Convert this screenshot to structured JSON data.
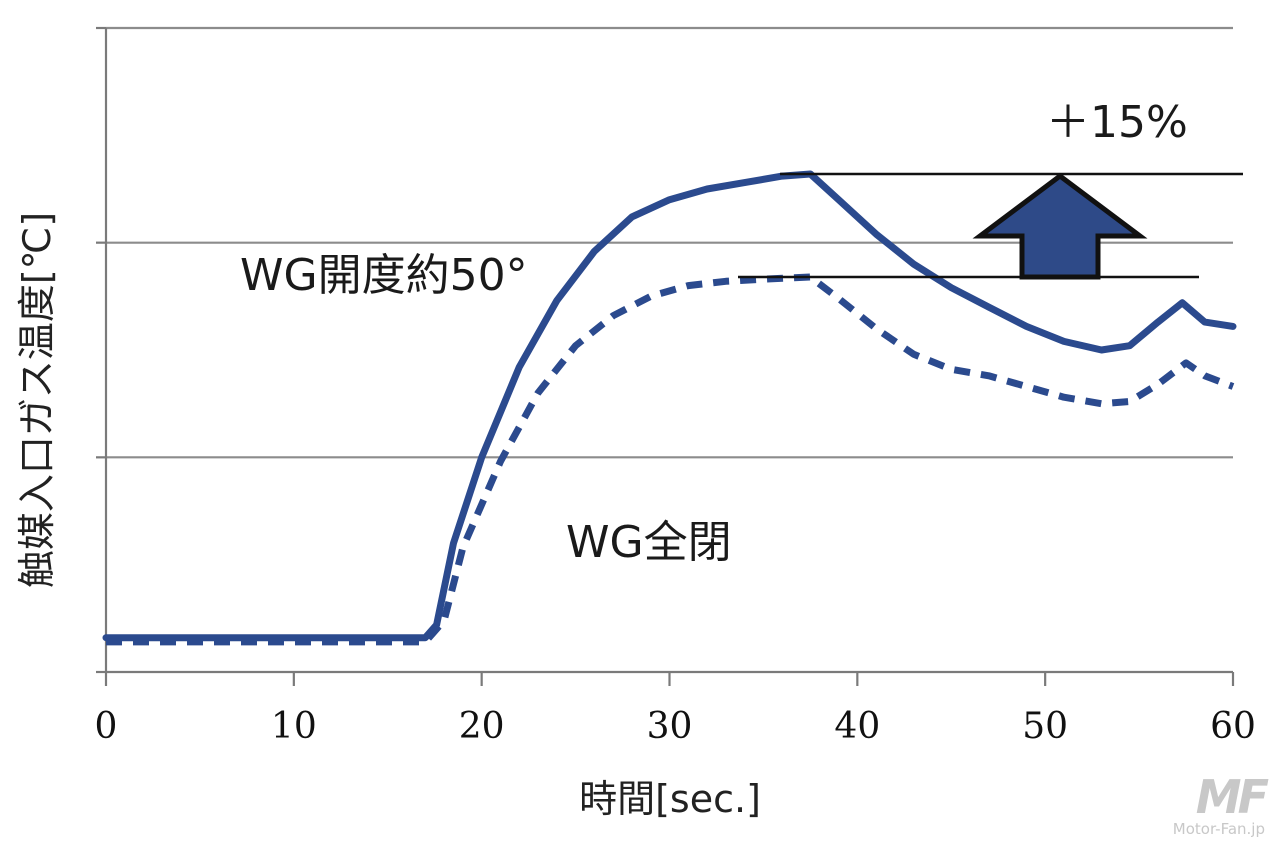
{
  "chart_data": {
    "type": "line",
    "title": "",
    "xlabel": "時間[sec.]",
    "ylabel": "触媒入口ガス温度[℃]",
    "xlim": [
      0,
      60
    ],
    "xticks": [
      0,
      10,
      20,
      30,
      40,
      50,
      60
    ],
    "ylim": [
      0,
      3
    ],
    "y_ticks_labeled": false,
    "grid": {
      "horizontal": true,
      "vertical": false
    },
    "series": [
      {
        "name": "WG開度約50°",
        "style": "solid",
        "color": "#2b4a8e",
        "x": [
          0,
          17,
          17.6,
          18.5,
          20,
          22,
          24,
          26,
          28,
          30,
          32,
          34,
          36,
          37.5,
          39,
          41,
          43,
          45,
          47,
          49,
          51,
          53,
          54.5,
          56,
          57.3,
          58.5,
          60
        ],
        "y": [
          0.16,
          0.16,
          0.22,
          0.6,
          1.0,
          1.42,
          1.73,
          1.96,
          2.12,
          2.2,
          2.25,
          2.28,
          2.31,
          2.32,
          2.2,
          2.04,
          1.9,
          1.79,
          1.7,
          1.61,
          1.54,
          1.5,
          1.52,
          1.63,
          1.72,
          1.63,
          1.61
        ]
      },
      {
        "name": "WG全閉",
        "style": "dashed",
        "color": "#2b4a8e",
        "x": [
          0,
          17,
          18,
          19,
          21,
          23,
          25,
          27,
          29,
          31,
          33,
          35,
          37.5,
          39,
          41,
          43,
          45,
          47,
          49,
          51,
          53,
          54.5,
          56,
          57.5,
          58.5,
          60
        ],
        "y": [
          0.14,
          0.14,
          0.24,
          0.58,
          0.98,
          1.3,
          1.52,
          1.66,
          1.75,
          1.8,
          1.82,
          1.83,
          1.84,
          1.74,
          1.6,
          1.48,
          1.41,
          1.38,
          1.33,
          1.28,
          1.25,
          1.26,
          1.34,
          1.44,
          1.38,
          1.33
        ]
      }
    ],
    "annotations": {
      "solid_label": "WG開度約50°",
      "dashed_label": "WG全閉",
      "increase_label": "＋15%",
      "reference_levels": [
        2.32,
        1.84
      ]
    }
  },
  "colors": {
    "line": "#2b4a8e",
    "arrow_fill": "#2e4a88",
    "arrow_stroke": "#111111"
  },
  "watermark": {
    "site": "Motor-Fan.jp"
  }
}
